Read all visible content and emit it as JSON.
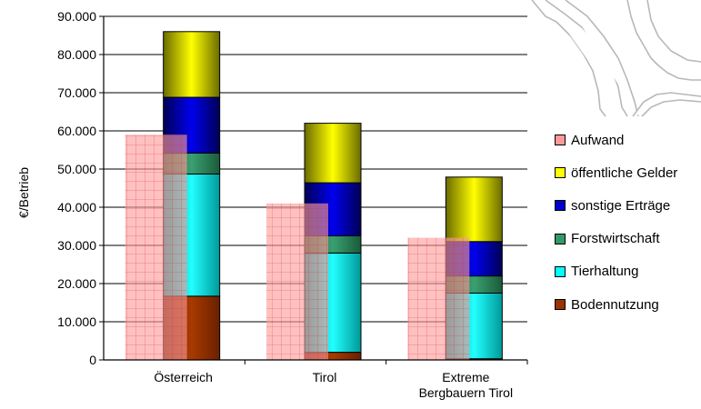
{
  "chart_data": {
    "type": "bar",
    "subtype": "stacked-bar-with-overlay",
    "title": "",
    "xlabel": "",
    "ylabel": "€/Betrieb",
    "ylim": [
      0,
      90000
    ],
    "yticks": [
      "0",
      "10.000",
      "20.000",
      "30.000",
      "40.000",
      "50.000",
      "60.000",
      "70.000",
      "80.000",
      "90.000"
    ],
    "ytick_values": [
      0,
      10000,
      20000,
      30000,
      40000,
      50000,
      60000,
      70000,
      80000,
      90000
    ],
    "grid": "horizontal",
    "legend_position": "right",
    "categories": [
      "Österreich",
      "Tirol",
      "Extreme Bergbauern Tirol"
    ],
    "category_labels": [
      [
        "Österreich"
      ],
      [
        "Tirol"
      ],
      [
        "Extreme",
        "Bergbauern Tirol"
      ]
    ],
    "stacked_series": [
      {
        "name": "Bodennutzung",
        "color": "#993300",
        "values": [
          16700,
          2000,
          300
        ]
      },
      {
        "name": "Tierhaltung",
        "color": "#00ffff",
        "values": [
          32000,
          26000,
          17200
        ]
      },
      {
        "name": "Forstwirtschaft",
        "color": "#339966",
        "values": [
          5500,
          4500,
          4500
        ]
      },
      {
        "name": "sonstige Erträge",
        "color": "#0000cc",
        "values": [
          14600,
          13900,
          9000
        ]
      },
      {
        "name": "öffentliche Gelder",
        "color": "#ffff00",
        "values": [
          17200,
          15600,
          16900
        ]
      }
    ],
    "overlay_series": {
      "name": "Aufwand",
      "color": "#ff9999",
      "values": [
        59000,
        41000,
        32000
      ]
    },
    "legend_order": [
      "Aufwand",
      "öffentliche Gelder",
      "sonstige Erträge",
      "Forstwirtschaft",
      "Tierhaltung",
      "Bodennutzung"
    ]
  }
}
